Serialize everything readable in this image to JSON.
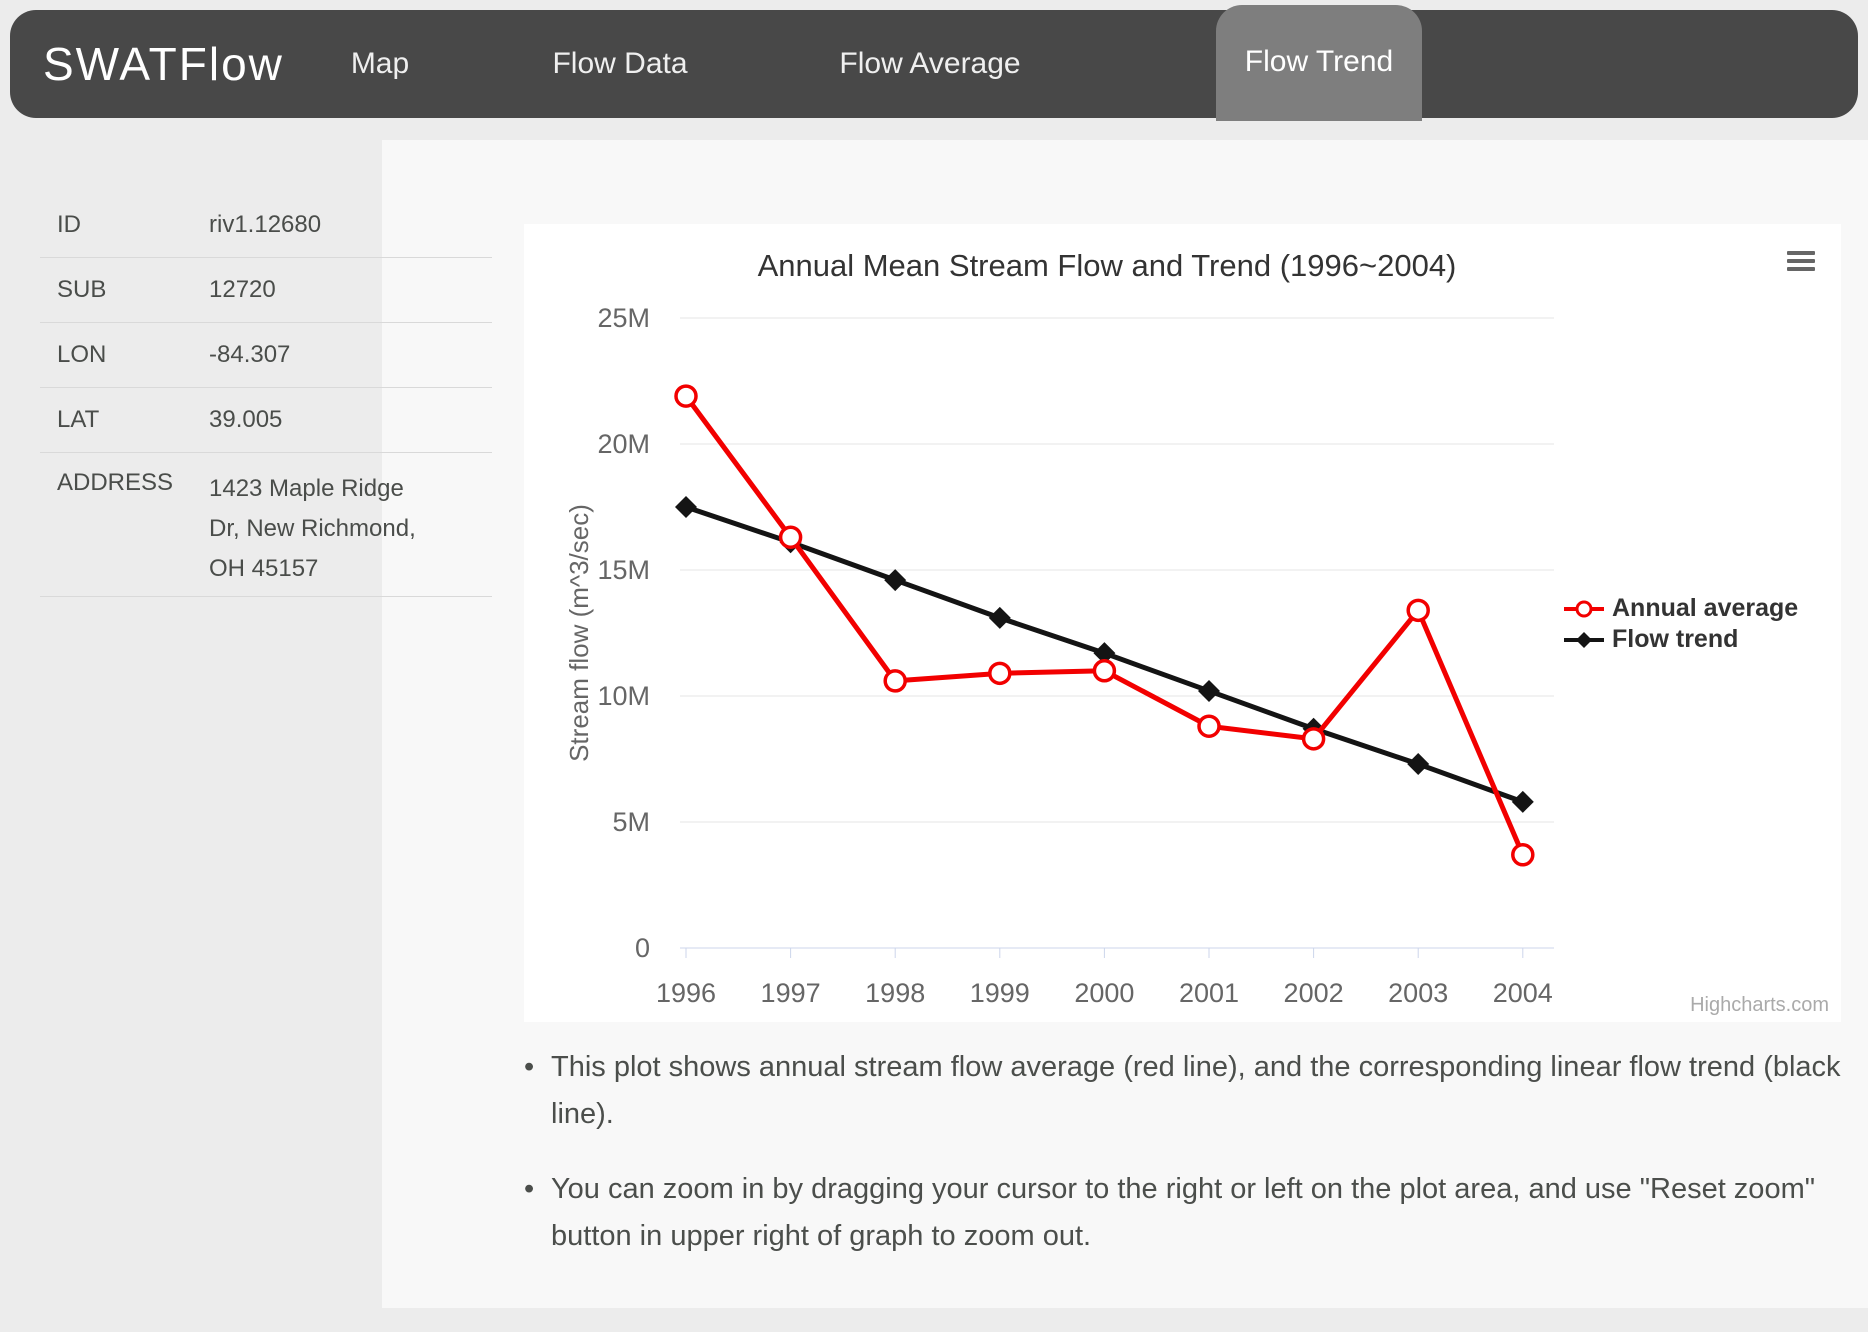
{
  "header": {
    "logo": "SWATFlow",
    "nav": [
      {
        "label": "Map",
        "active": false
      },
      {
        "label": "Flow Data",
        "active": false
      },
      {
        "label": "Flow Average",
        "active": false
      },
      {
        "label": "Flow Trend",
        "active": true
      }
    ]
  },
  "sidebar": {
    "rows": [
      {
        "label": "ID",
        "value": "riv1.12680"
      },
      {
        "label": "SUB",
        "value": "12720"
      },
      {
        "label": "LON",
        "value": "-84.307"
      },
      {
        "label": "LAT",
        "value": "39.005"
      },
      {
        "label": "ADDRESS",
        "value": "1423 Maple Ridge Dr, New Richmond, OH 45157"
      }
    ]
  },
  "chart": {
    "credit": "Highcharts.com",
    "menu_icon": "hamburger-icon"
  },
  "chart_data": {
    "type": "line",
    "title": "Annual Mean Stream Flow and Trend (1996~2004)",
    "categories": [
      "1996",
      "1997",
      "1998",
      "1999",
      "2000",
      "2001",
      "2002",
      "2003",
      "2004"
    ],
    "series": [
      {
        "name": "Annual average",
        "color": "#f20000",
        "marker": "open-circle",
        "values": [
          21.9,
          16.3,
          10.6,
          10.9,
          11.0,
          8.8,
          8.3,
          13.4,
          3.7
        ]
      },
      {
        "name": "Flow trend",
        "color": "#141414",
        "marker": "diamond",
        "values": [
          17.5,
          16.1,
          14.6,
          13.1,
          11.7,
          10.2,
          8.7,
          7.3,
          5.8
        ]
      }
    ],
    "values_unit": "million m^3/sec",
    "xlabel": "",
    "ylabel": "Stream flow (m^3/sec)",
    "ylim_million": [
      0,
      25
    ],
    "yticks": [
      {
        "value": 0,
        "label": "0"
      },
      {
        "value": 5,
        "label": "5M"
      },
      {
        "value": 10,
        "label": "10M"
      },
      {
        "value": 15,
        "label": "15M"
      },
      {
        "value": 20,
        "label": "20M"
      },
      {
        "value": 25,
        "label": "25M"
      }
    ],
    "grid": true,
    "legend_position": "right"
  },
  "notes": {
    "bullets": [
      "This plot shows annual stream flow average (red line), and the corresponding linear flow trend (black line).",
      "You can zoom in by dragging your cursor to the right or left on the plot area, and use \"Reset zoom\" button in upper right of graph to zoom out."
    ]
  },
  "colors": {
    "header_bg": "#484848",
    "active_tab_bg": "#7e7e7e",
    "page_bg": "#ececec",
    "panel_bg": "#f8f8f8",
    "card_bg": "#ffffff",
    "grid_line": "#e6e6e6",
    "axis_line": "#ccd6eb",
    "tick_text": "#666666",
    "title_text": "#333333",
    "body_text": "#4a4d4a"
  }
}
